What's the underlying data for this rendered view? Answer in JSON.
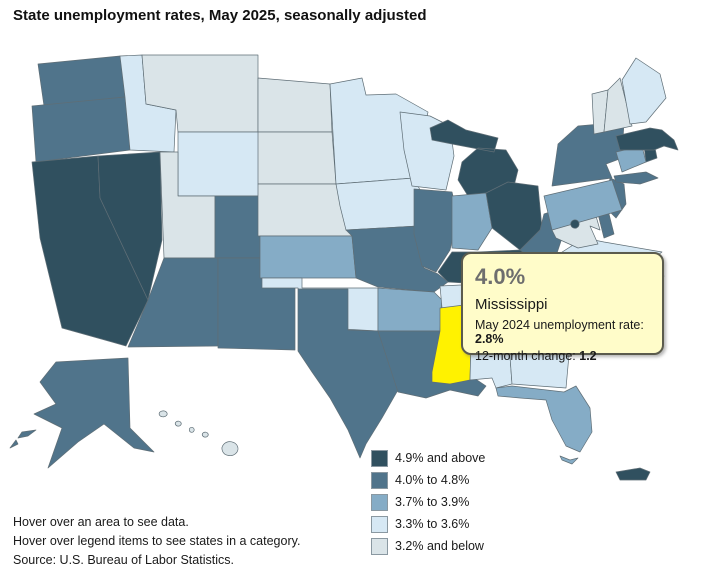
{
  "title": "State unemployment rates, May 2025, seasonally adjusted",
  "tooltip": {
    "rate": "4.0%",
    "state": "Mississippi",
    "prev_label": "May 2024 unemployment rate: ",
    "prev_value": "2.8%",
    "change_label": "12-month change: ",
    "change_value": "1.2"
  },
  "legend": {
    "items": [
      {
        "key": "b1",
        "label": "4.9% and above",
        "color": "#30505F"
      },
      {
        "key": "b2",
        "label": "4.0% to 4.8%",
        "color": "#50748B"
      },
      {
        "key": "b3",
        "label": "3.7% to 3.9%",
        "color": "#85ACC6"
      },
      {
        "key": "b4",
        "label": "3.3% to 3.6%",
        "color": "#D6E8F4"
      },
      {
        "key": "b5",
        "label": "3.2% and below",
        "color": "#DAE4E8"
      }
    ]
  },
  "notes": [
    "Hover over an area to see data.",
    "Hover over legend items to see states in a category."
  ],
  "source": "Source: U.S. Bureau of Labor Statistics.",
  "map": {
    "hover_color": "#FFF200",
    "border_color": "#5f6e76",
    "hovered_state": "MS",
    "states": [
      {
        "id": "WA",
        "name": "Washington",
        "category": "b2"
      },
      {
        "id": "OR",
        "name": "Oregon",
        "category": "b2"
      },
      {
        "id": "CA",
        "name": "California",
        "category": "b1"
      },
      {
        "id": "NV",
        "name": "Nevada",
        "category": "b1"
      },
      {
        "id": "ID",
        "name": "Idaho",
        "category": "b4"
      },
      {
        "id": "MT",
        "name": "Montana",
        "category": "b5"
      },
      {
        "id": "WY",
        "name": "Wyoming",
        "category": "b4"
      },
      {
        "id": "UT",
        "name": "Utah",
        "category": "b5"
      },
      {
        "id": "CO",
        "name": "Colorado",
        "category": "b2"
      },
      {
        "id": "AZ",
        "name": "Arizona",
        "category": "b2"
      },
      {
        "id": "NM",
        "name": "New Mexico",
        "category": "b2"
      },
      {
        "id": "ND",
        "name": "North Dakota",
        "category": "b5"
      },
      {
        "id": "SD",
        "name": "South Dakota",
        "category": "b5"
      },
      {
        "id": "NE",
        "name": "Nebraska",
        "category": "b5"
      },
      {
        "id": "KS",
        "name": "Kansas",
        "category": "b3"
      },
      {
        "id": "OK",
        "name": "Oklahoma",
        "category": "b4"
      },
      {
        "id": "TX",
        "name": "Texas",
        "category": "b2"
      },
      {
        "id": "MN",
        "name": "Minnesota",
        "category": "b4"
      },
      {
        "id": "IA",
        "name": "Iowa",
        "category": "b4"
      },
      {
        "id": "MO",
        "name": "Missouri",
        "category": "b2"
      },
      {
        "id": "AR",
        "name": "Arkansas",
        "category": "b3"
      },
      {
        "id": "LA",
        "name": "Louisiana",
        "category": "b2"
      },
      {
        "id": "WI",
        "name": "Wisconsin",
        "category": "b4"
      },
      {
        "id": "IL",
        "name": "Illinois",
        "category": "b2"
      },
      {
        "id": "MI",
        "name": "Michigan",
        "category": "b1"
      },
      {
        "id": "IN",
        "name": "Indiana",
        "category": "b3"
      },
      {
        "id": "OH",
        "name": "Ohio",
        "category": "b1"
      },
      {
        "id": "KY",
        "name": "Kentucky",
        "category": "b1"
      },
      {
        "id": "TN",
        "name": "Tennessee",
        "category": "b4"
      },
      {
        "id": "MS",
        "name": "Mississippi",
        "category": "b2",
        "hovered": true
      },
      {
        "id": "AL",
        "name": "Alabama",
        "category": "b4"
      },
      {
        "id": "GA",
        "name": "Georgia",
        "category": "b4"
      },
      {
        "id": "FL",
        "name": "Florida",
        "category": "b3"
      },
      {
        "id": "SC",
        "name": "South Carolina",
        "category": "b2"
      },
      {
        "id": "NC",
        "name": "North Carolina",
        "category": "b3"
      },
      {
        "id": "VA",
        "name": "Virginia",
        "category": "b4"
      },
      {
        "id": "WV",
        "name": "West Virginia",
        "category": "b2"
      },
      {
        "id": "MD",
        "name": "Maryland",
        "category": "b5"
      },
      {
        "id": "DE",
        "name": "Delaware",
        "category": "b2"
      },
      {
        "id": "NJ",
        "name": "New Jersey",
        "category": "b2"
      },
      {
        "id": "PA",
        "name": "Pennsylvania",
        "category": "b3"
      },
      {
        "id": "NY",
        "name": "New York",
        "category": "b2"
      },
      {
        "id": "CT",
        "name": "Connecticut",
        "category": "b3"
      },
      {
        "id": "RI",
        "name": "Rhode Island",
        "category": "b1"
      },
      {
        "id": "MA",
        "name": "Massachusetts",
        "category": "b1"
      },
      {
        "id": "VT",
        "name": "Vermont",
        "category": "b5"
      },
      {
        "id": "NH",
        "name": "New Hampshire",
        "category": "b5"
      },
      {
        "id": "ME",
        "name": "Maine",
        "category": "b4"
      },
      {
        "id": "AK",
        "name": "Alaska",
        "category": "b2"
      },
      {
        "id": "HI",
        "name": "Hawaii",
        "category": "b5"
      },
      {
        "id": "DC",
        "name": "District of Columbia",
        "category": "b1"
      },
      {
        "id": "PR",
        "name": "Puerto Rico",
        "category": "b1"
      }
    ]
  }
}
